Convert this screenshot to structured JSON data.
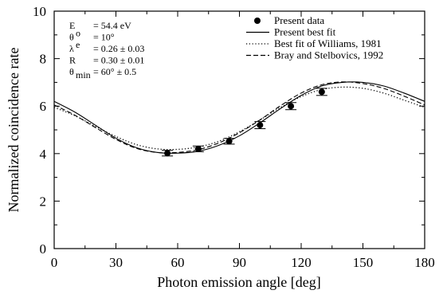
{
  "chart_data": {
    "type": "line",
    "title": "",
    "xlabel": "Photon emission angle [deg]",
    "ylabel": "Normalized coincidence rate",
    "xlim": [
      0,
      180
    ],
    "ylim": [
      0,
      10
    ],
    "xticks": [
      0,
      30,
      60,
      90,
      120,
      150,
      180
    ],
    "yticks": [
      0,
      2,
      4,
      6,
      8,
      10
    ],
    "grid": false,
    "legend_position": "top-right",
    "parameters": [
      {
        "name": "E",
        "superscript": "",
        "subscript": "",
        "value": "= 54.4 eV"
      },
      {
        "name": "θ",
        "superscript": "o",
        "subscript": "",
        "value": "= 10°"
      },
      {
        "name": "λ",
        "superscript": "e",
        "subscript": "",
        "value": "= 0.26 ± 0.03"
      },
      {
        "name": "R",
        "superscript": "",
        "subscript": "",
        "value": "= 0.30 ± 0.01"
      },
      {
        "name": "θ",
        "superscript": "",
        "subscript": "min",
        "value": "= 60° ± 0.5"
      }
    ],
    "series": [
      {
        "name": "Present data",
        "style": "points",
        "x": [
          55,
          70,
          85,
          100,
          115,
          130
        ],
        "y": [
          4.02,
          4.2,
          4.52,
          5.2,
          6.0,
          6.6
        ],
        "yerr": [
          0.12,
          0.12,
          0.12,
          0.15,
          0.15,
          0.15
        ]
      },
      {
        "name": "Present best fit",
        "style": "solid",
        "x": [
          0,
          10,
          20,
          30,
          40,
          50,
          60,
          70,
          80,
          90,
          100,
          110,
          120,
          130,
          140,
          150,
          160,
          170,
          180
        ],
        "y": [
          6.2,
          5.75,
          5.2,
          4.65,
          4.25,
          4.05,
          4.02,
          4.1,
          4.35,
          4.75,
          5.3,
          5.9,
          6.45,
          6.85,
          7.0,
          7.0,
          6.85,
          6.55,
          6.2
        ]
      },
      {
        "name": "Best fit of Williams, 1981",
        "style": "dotted",
        "x": [
          0,
          10,
          20,
          30,
          40,
          50,
          60,
          70,
          80,
          90,
          100,
          110,
          120,
          130,
          140,
          150,
          160,
          170,
          180
        ],
        "y": [
          5.95,
          5.6,
          5.15,
          4.72,
          4.38,
          4.2,
          4.18,
          4.28,
          4.52,
          4.92,
          5.42,
          5.95,
          6.4,
          6.7,
          6.8,
          6.75,
          6.55,
          6.25,
          5.95
        ]
      },
      {
        "name": "Bray and Stelbovics, 1992",
        "style": "dashed",
        "x": [
          0,
          10,
          20,
          30,
          40,
          50,
          60,
          70,
          80,
          90,
          100,
          110,
          120,
          130,
          140,
          150,
          160,
          170,
          180
        ],
        "y": [
          6.05,
          5.62,
          5.1,
          4.6,
          4.22,
          4.05,
          4.05,
          4.17,
          4.45,
          4.88,
          5.42,
          6.02,
          6.55,
          6.9,
          7.02,
          6.95,
          6.75,
          6.42,
          6.05
        ]
      }
    ]
  }
}
